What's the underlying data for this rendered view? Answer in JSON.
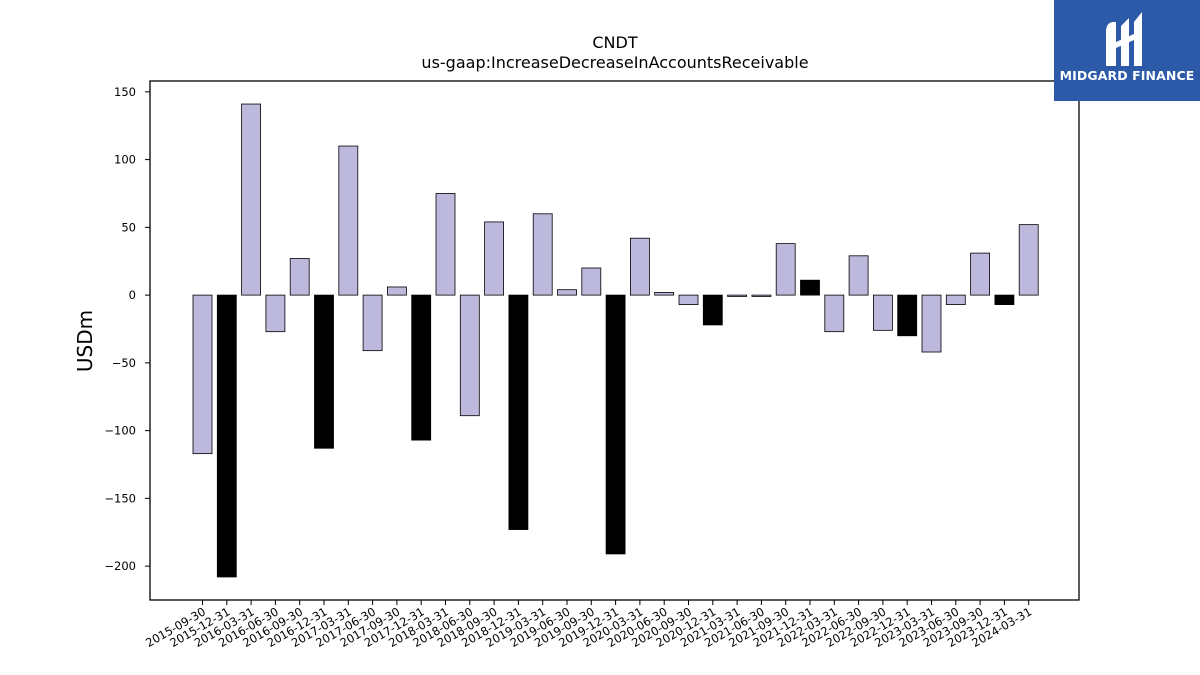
{
  "brand": {
    "name": "MIDGARD FINANCE",
    "logo_icon": "midgard-finance-logo-icon",
    "background_color": "#2c5aa8"
  },
  "chart_data": {
    "type": "bar",
    "title": "CNDT",
    "subtitle": "us-gaap:IncreaseDecreaseInAccountsReceivable",
    "xlabel": "",
    "ylabel": "USDm",
    "ylim": [
      -225,
      158
    ],
    "yticks": [
      150,
      100,
      50,
      0,
      -50,
      -100,
      -150,
      -200
    ],
    "ytick_labels": [
      "150",
      "100",
      "50",
      "0",
      "−50",
      "−100",
      "−150",
      "−200"
    ],
    "grid": false,
    "colors": {
      "quarter": "#bdb9dc",
      "fiscal_year_end": "#000000",
      "edge": "#000000"
    },
    "categories": [
      "2015-09-30",
      "2015-12-31",
      "2016-03-31",
      "2016-06-30",
      "2016-09-30",
      "2016-12-31",
      "2017-03-31",
      "2017-06-30",
      "2017-09-30",
      "2017-12-31",
      "2018-03-31",
      "2018-06-30",
      "2018-09-30",
      "2018-12-31",
      "2019-03-31",
      "2019-06-30",
      "2019-09-30",
      "2019-12-31",
      "2020-03-31",
      "2020-06-30",
      "2020-09-30",
      "2020-12-31",
      "2021-03-31",
      "2021-06-30",
      "2021-09-30",
      "2021-12-31",
      "2022-03-31",
      "2022-06-30",
      "2022-09-30",
      "2022-12-31",
      "2023-03-31",
      "2023-06-30",
      "2023-09-30",
      "2023-12-31",
      "2024-03-31"
    ],
    "values": [
      -117,
      -208,
      141,
      -27,
      27,
      -113,
      110,
      -41,
      6,
      -107,
      75,
      -89,
      54,
      -173,
      60,
      4,
      20,
      -191,
      42,
      2,
      -7,
      -22,
      -1,
      -1,
      38,
      11,
      -27,
      29,
      -26,
      -30,
      -42,
      -7,
      31,
      -7,
      52
    ],
    "fiscal_year_end": [
      false,
      true,
      false,
      false,
      false,
      true,
      false,
      false,
      false,
      true,
      false,
      false,
      false,
      true,
      false,
      false,
      false,
      true,
      false,
      false,
      false,
      true,
      false,
      false,
      false,
      true,
      false,
      false,
      false,
      true,
      false,
      false,
      false,
      true,
      false
    ]
  }
}
